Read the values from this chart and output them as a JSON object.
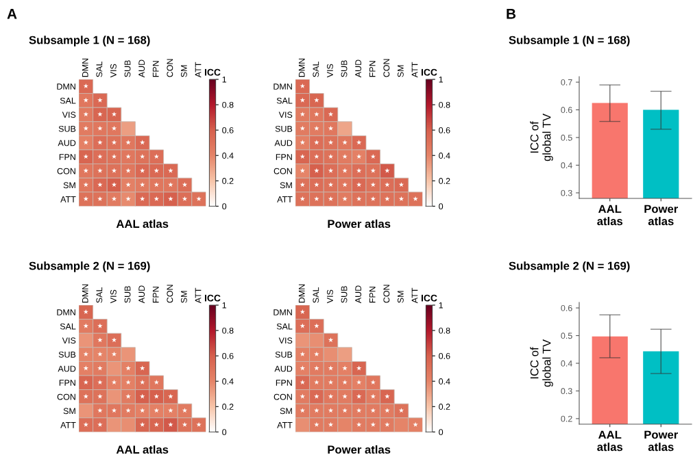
{
  "chart_data": [
    {
      "type": "heatmap",
      "title": "Subsample 1 (N = 168)",
      "annotations": [
        "A"
      ],
      "xlabel": "AAL atlas",
      "clabel": "ICC",
      "clim": [
        0,
        1
      ],
      "cticks": [
        {
          "value": 0,
          "label": "0"
        },
        {
          "value": 0.2,
          "label": "0.2"
        },
        {
          "value": 0.4,
          "label": "0.4"
        },
        {
          "value": 0.6,
          "label": "0.6"
        },
        {
          "value": 0.8,
          "label": "0.8"
        },
        {
          "value": 1,
          "label": "1"
        }
      ],
      "categories": [
        "DMN",
        "SAL",
        "VIS",
        "SUB",
        "AUD",
        "FPN",
        "CON",
        "SM",
        "ATT"
      ],
      "y_categories": [
        "DMN",
        "SAL",
        "VIS",
        "SUB",
        "AUD",
        "FPN",
        "CON",
        "SM",
        "ATT"
      ],
      "cells": [
        [
          0.55,
          null,
          null,
          null,
          null,
          null,
          null,
          null,
          null
        ],
        [
          0.47,
          0.55,
          null,
          null,
          null,
          null,
          null,
          null,
          null
        ],
        [
          0.45,
          0.57,
          0.57,
          null,
          null,
          null,
          null,
          null,
          null
        ],
        [
          0.45,
          0.47,
          0.47,
          0.32,
          null,
          null,
          null,
          null,
          null
        ],
        [
          0.42,
          0.52,
          0.5,
          0.47,
          0.55,
          null,
          null,
          null,
          null
        ],
        [
          0.57,
          0.52,
          0.5,
          0.47,
          0.5,
          0.52,
          null,
          null,
          null
        ],
        [
          0.47,
          0.5,
          0.5,
          0.47,
          0.55,
          0.55,
          0.55,
          null,
          null
        ],
        [
          0.47,
          0.55,
          0.6,
          0.42,
          0.45,
          0.47,
          0.47,
          0.52,
          null
        ],
        [
          0.5,
          0.5,
          0.45,
          0.38,
          0.55,
          0.55,
          0.6,
          0.52,
          0.5
        ]
      ],
      "cell_labels": [
        [
          "★",
          null,
          null,
          null,
          null,
          null,
          null,
          null,
          null
        ],
        [
          "★",
          "★",
          null,
          null,
          null,
          null,
          null,
          null,
          null
        ],
        [
          "★",
          "★",
          "★",
          null,
          null,
          null,
          null,
          null,
          null
        ],
        [
          "★",
          "★",
          "★",
          null,
          null,
          null,
          null,
          null,
          null
        ],
        [
          "★",
          "★",
          "★",
          "★",
          "★",
          null,
          null,
          null,
          null
        ],
        [
          "★",
          "★",
          "★",
          "★",
          "★",
          "★",
          null,
          null,
          null
        ],
        [
          "★",
          "★",
          "★",
          "★",
          "★",
          "★",
          "★",
          null,
          null
        ],
        [
          "★",
          "★",
          "★",
          "★",
          "★",
          "★",
          "★",
          "★",
          null
        ],
        [
          "★",
          "★",
          "★",
          "★",
          "★",
          "★",
          "★",
          "★",
          "★"
        ]
      ]
    },
    {
      "type": "heatmap",
      "xlabel": "Power atlas",
      "clabel": "ICC",
      "clim": [
        0,
        1
      ],
      "cticks": [
        {
          "value": 0,
          "label": "0"
        },
        {
          "value": 0.2,
          "label": "0.2"
        },
        {
          "value": 0.4,
          "label": "0.4"
        },
        {
          "value": 0.6,
          "label": "0.6"
        },
        {
          "value": 0.8,
          "label": "0.8"
        },
        {
          "value": 1,
          "label": "1"
        }
      ],
      "categories": [
        "DMN",
        "SAL",
        "VIS",
        "SUB",
        "AUD",
        "FPN",
        "CON",
        "SM",
        "ATT"
      ],
      "y_categories": [
        "DMN",
        "SAL",
        "VIS",
        "SUB",
        "AUD",
        "FPN",
        "CON",
        "SM",
        "ATT"
      ],
      "cells": [
        [
          0.55,
          null,
          null,
          null,
          null,
          null,
          null,
          null,
          null
        ],
        [
          0.55,
          0.57,
          null,
          null,
          null,
          null,
          null,
          null,
          null
        ],
        [
          0.45,
          0.47,
          0.55,
          null,
          null,
          null,
          null,
          null,
          null
        ],
        [
          0.45,
          0.45,
          0.47,
          0.3,
          null,
          null,
          null,
          null,
          null
        ],
        [
          0.42,
          0.52,
          0.5,
          0.47,
          0.55,
          null,
          null,
          null,
          null
        ],
        [
          0.57,
          0.52,
          0.5,
          0.45,
          0.42,
          0.55,
          null,
          null,
          null
        ],
        [
          0.4,
          0.6,
          0.52,
          0.47,
          0.52,
          0.5,
          0.62,
          null,
          null
        ],
        [
          0.5,
          0.52,
          0.5,
          0.47,
          0.55,
          0.5,
          0.52,
          0.55,
          null
        ],
        [
          0.5,
          0.5,
          0.5,
          0.45,
          0.5,
          0.5,
          0.5,
          0.5,
          0.5
        ]
      ],
      "cell_labels": [
        [
          "★",
          null,
          null,
          null,
          null,
          null,
          null,
          null,
          null
        ],
        [
          "★",
          "★",
          null,
          null,
          null,
          null,
          null,
          null,
          null
        ],
        [
          "★",
          "★",
          "★",
          null,
          null,
          null,
          null,
          null,
          null
        ],
        [
          "★",
          "★",
          "★",
          null,
          null,
          null,
          null,
          null,
          null
        ],
        [
          "★",
          "★",
          "★",
          "★",
          "★",
          null,
          null,
          null,
          null
        ],
        [
          "★",
          "★",
          "★",
          "★",
          "★",
          "★",
          null,
          null,
          null
        ],
        [
          "★",
          "★",
          "★",
          "★",
          "★",
          "★",
          "★",
          null,
          null
        ],
        [
          "★",
          "★",
          "★",
          "★",
          "★",
          "★",
          "★",
          "★",
          null
        ],
        [
          "★",
          "★",
          "★",
          "★",
          "★",
          "★",
          "★",
          "★",
          "★"
        ]
      ]
    },
    {
      "type": "heatmap",
      "title": "Subsample 2 (N = 169)",
      "xlabel": "AAL atlas",
      "clabel": "ICC",
      "clim": [
        0,
        1
      ],
      "cticks": [
        {
          "value": 0,
          "label": "0"
        },
        {
          "value": 0.2,
          "label": "0.2"
        },
        {
          "value": 0.4,
          "label": "0.4"
        },
        {
          "value": 0.6,
          "label": "0.6"
        },
        {
          "value": 0.8,
          "label": "0.8"
        },
        {
          "value": 1,
          "label": "1"
        }
      ],
      "categories": [
        "DMN",
        "SAL",
        "VIS",
        "SUB",
        "AUD",
        "FPN",
        "CON",
        "SM",
        "ATT"
      ],
      "y_categories": [
        "DMN",
        "SAL",
        "VIS",
        "SUB",
        "AUD",
        "FPN",
        "CON",
        "SM",
        "ATT"
      ],
      "cells": [
        [
          0.57,
          null,
          null,
          null,
          null,
          null,
          null,
          null,
          null
        ],
        [
          0.45,
          0.52,
          null,
          null,
          null,
          null,
          null,
          null,
          null
        ],
        [
          0.35,
          0.47,
          0.52,
          null,
          null,
          null,
          null,
          null,
          null
        ],
        [
          0.4,
          0.4,
          0.4,
          0.35,
          null,
          null,
          null,
          null,
          null
        ],
        [
          0.42,
          0.45,
          0.35,
          0.42,
          0.57,
          null,
          null,
          null,
          null
        ],
        [
          0.57,
          0.52,
          0.42,
          0.42,
          0.5,
          0.47,
          null,
          null,
          null
        ],
        [
          0.5,
          0.5,
          0.35,
          0.45,
          0.6,
          0.6,
          0.57,
          null,
          null
        ],
        [
          0.35,
          0.47,
          0.47,
          0.45,
          0.42,
          0.42,
          0.42,
          0.45,
          null
        ],
        [
          0.52,
          0.52,
          0.35,
          0.37,
          0.57,
          0.57,
          0.62,
          0.5,
          0.5
        ]
      ],
      "cell_labels": [
        [
          "★",
          null,
          null,
          null,
          null,
          null,
          null,
          null,
          null
        ],
        [
          "★",
          "★",
          null,
          null,
          null,
          null,
          null,
          null,
          null
        ],
        [
          null,
          "★",
          "★",
          null,
          null,
          null,
          null,
          null,
          null
        ],
        [
          "★",
          "★",
          "★",
          null,
          null,
          null,
          null,
          null,
          null
        ],
        [
          "★",
          "★",
          null,
          "★",
          "★",
          null,
          null,
          null,
          null
        ],
        [
          "★",
          "★",
          "★",
          "★",
          "★",
          "★",
          null,
          null,
          null
        ],
        [
          "★",
          "★",
          null,
          "★",
          "★",
          "★",
          "★",
          null,
          null
        ],
        [
          null,
          "★",
          "★",
          "★",
          "★",
          "★",
          "★",
          "★",
          null
        ],
        [
          "★",
          "★",
          null,
          null,
          "★",
          "★",
          "★",
          "★",
          "★"
        ]
      ]
    },
    {
      "type": "heatmap",
      "xlabel": "Power atlas",
      "clabel": "ICC",
      "clim": [
        0,
        1
      ],
      "cticks": [
        {
          "value": 0,
          "label": "0"
        },
        {
          "value": 0.2,
          "label": "0.2"
        },
        {
          "value": 0.4,
          "label": "0.4"
        },
        {
          "value": 0.6,
          "label": "0.6"
        },
        {
          "value": 0.8,
          "label": "0.8"
        },
        {
          "value": 1,
          "label": "1"
        }
      ],
      "categories": [
        "DMN",
        "SAL",
        "VIS",
        "SUB",
        "AUD",
        "FPN",
        "CON",
        "SM",
        "ATT"
      ],
      "y_categories": [
        "DMN",
        "SAL",
        "VIS",
        "SUB",
        "AUD",
        "FPN",
        "CON",
        "SM",
        "ATT"
      ],
      "cells": [
        [
          0.57,
          null,
          null,
          null,
          null,
          null,
          null,
          null,
          null
        ],
        [
          0.52,
          0.52,
          null,
          null,
          null,
          null,
          null,
          null,
          null
        ],
        [
          0.35,
          0.37,
          0.5,
          null,
          null,
          null,
          null,
          null,
          null
        ],
        [
          0.42,
          0.42,
          0.37,
          0.32,
          null,
          null,
          null,
          null,
          null
        ],
        [
          0.42,
          0.45,
          0.45,
          0.42,
          0.57,
          null,
          null,
          null,
          null
        ],
        [
          0.55,
          0.45,
          0.45,
          0.45,
          0.42,
          0.47,
          null,
          null,
          null
        ],
        [
          0.45,
          0.55,
          0.47,
          0.45,
          0.55,
          0.45,
          0.57,
          null,
          null
        ],
        [
          0.45,
          0.45,
          0.45,
          0.45,
          0.45,
          0.45,
          0.45,
          0.5,
          null
        ],
        [
          0.37,
          0.45,
          0.45,
          0.4,
          0.45,
          0.45,
          0.45,
          0.4,
          0.42
        ]
      ],
      "cell_labels": [
        [
          "★",
          null,
          null,
          null,
          null,
          null,
          null,
          null,
          null
        ],
        [
          "★",
          "★",
          null,
          null,
          null,
          null,
          null,
          null,
          null
        ],
        [
          null,
          null,
          "★",
          null,
          null,
          null,
          null,
          null,
          null
        ],
        [
          "★",
          "★",
          null,
          null,
          null,
          null,
          null,
          null,
          null
        ],
        [
          "★",
          "★",
          "★",
          "★",
          "★",
          null,
          null,
          null,
          null
        ],
        [
          "★",
          "★",
          "★",
          "★",
          "★",
          "★",
          null,
          null,
          null
        ],
        [
          "★",
          "★",
          "★",
          "★",
          "★",
          "★",
          "★",
          null,
          null
        ],
        [
          "★",
          "★",
          "★",
          "★",
          "★",
          "★",
          "★",
          "★",
          null
        ],
        [
          null,
          "★",
          "★",
          null,
          "★",
          "★",
          "★",
          null,
          "★"
        ]
      ]
    },
    {
      "type": "bar",
      "title": "Subsample 1 (N = 168)",
      "annotations": [
        "B"
      ],
      "ylabel": "ICC of\nglobal TV",
      "categories": [
        "AAL\natlas",
        "Power\natlas"
      ],
      "values": [
        0.625,
        0.6
      ],
      "colors": [
        "#f8766d",
        "#00bfc4"
      ],
      "errors": [
        [
          0.558,
          0.69
        ],
        [
          0.53,
          0.667
        ]
      ],
      "ylim": [
        0.28,
        0.72
      ],
      "yticks": [
        0.3,
        0.4,
        0.5,
        0.6,
        0.7
      ]
    },
    {
      "type": "bar",
      "title": "Subsample 2 (N = 169)",
      "ylabel": "ICC of\nglobal TV",
      "categories": [
        "AAL\natlas",
        "Power\natlas"
      ],
      "values": [
        0.497,
        0.443
      ],
      "colors": [
        "#f8766d",
        "#00bfc4"
      ],
      "errors": [
        [
          0.42,
          0.575
        ],
        [
          0.363,
          0.523
        ]
      ],
      "ylim": [
        0.18,
        0.62
      ],
      "yticks": [
        0.2,
        0.3,
        0.4,
        0.5,
        0.6
      ]
    }
  ]
}
